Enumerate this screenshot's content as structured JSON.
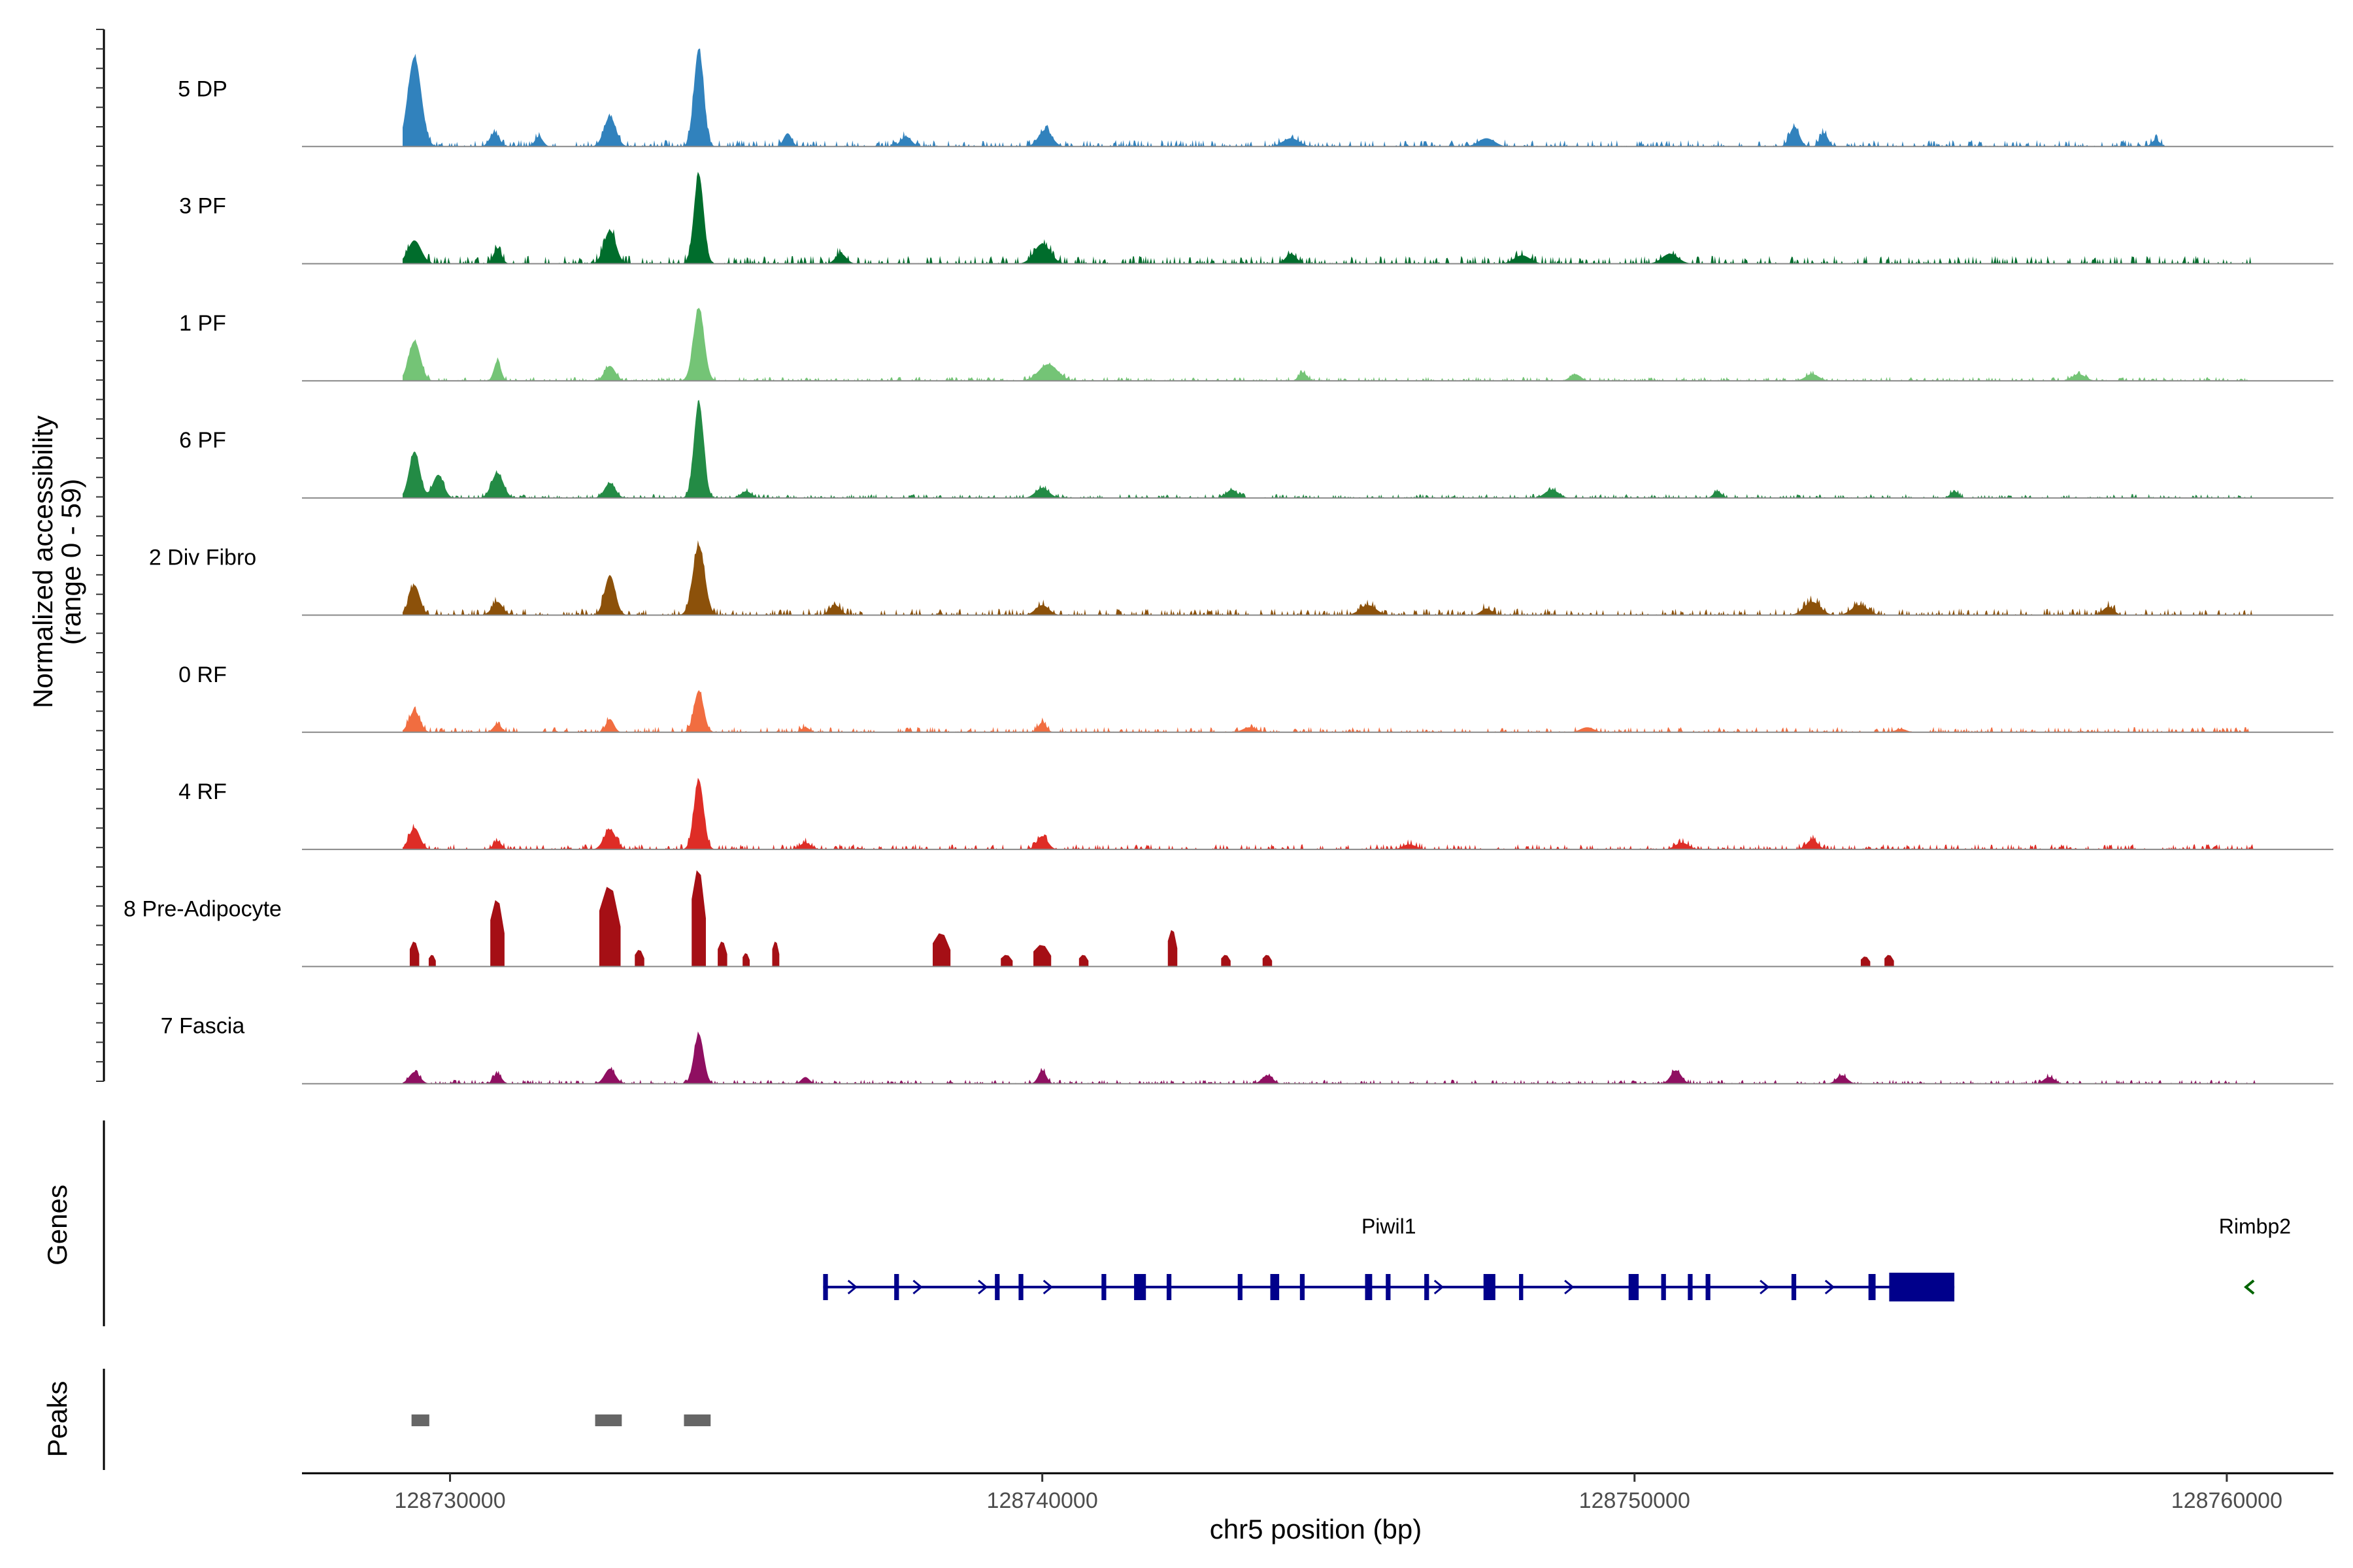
{
  "chart_data": {
    "type": "area",
    "region": "chr5:128727500-128761800",
    "accessibility_axis": {
      "title_line1": "Normalized accessibility",
      "title_line2": "(range 0 - 59)",
      "range": [
        0,
        59
      ]
    },
    "genes_label": "Genes",
    "peaks_label": "Peaks",
    "x_axis": {
      "title": "chr5 position (bp)",
      "range": [
        128727500,
        128761800
      ],
      "ticks": [
        128730000,
        128740000,
        128750000,
        128760000
      ],
      "tick_labels": [
        "128730000",
        "128740000",
        "128750000",
        "128760000"
      ]
    },
    "tracks": [
      {
        "name": "5 DP",
        "color": "#3182bd",
        "peaks": [
          [
            128729400,
            54,
            250
          ],
          [
            128730750,
            8,
            180
          ],
          [
            128731500,
            6,
            150
          ],
          [
            128732700,
            18,
            220
          ],
          [
            128734200,
            59,
            180
          ],
          [
            128735700,
            8,
            150
          ],
          [
            128737700,
            6,
            200
          ],
          [
            128740050,
            10,
            250
          ],
          [
            128744200,
            5,
            300
          ],
          [
            128747500,
            5,
            300
          ],
          [
            128752700,
            12,
            180
          ],
          [
            128753200,
            8,
            150
          ],
          [
            128758800,
            4,
            150
          ]
        ],
        "baseline": 2.5,
        "extent": [
          128729200,
          128759000
        ]
      },
      {
        "name": "3 PF",
        "color": "#006d2c",
        "peaks": [
          [
            128729400,
            14,
            250
          ],
          [
            128730800,
            9,
            150
          ],
          [
            128732700,
            20,
            220
          ],
          [
            128734200,
            54,
            180
          ],
          [
            128736600,
            6,
            200
          ],
          [
            128740000,
            12,
            300
          ],
          [
            128744200,
            6,
            200
          ],
          [
            128748100,
            5,
            300
          ],
          [
            128750600,
            6,
            300
          ]
        ],
        "baseline": 3,
        "extent": [
          128729200,
          128760500
        ]
      },
      {
        "name": "1 PF",
        "color": "#74c476",
        "peaks": [
          [
            128729400,
            24,
            220
          ],
          [
            128730800,
            12,
            130
          ],
          [
            128732700,
            9,
            200
          ],
          [
            128734200,
            44,
            200
          ],
          [
            128740100,
            10,
            350
          ],
          [
            128744400,
            5,
            150
          ],
          [
            128749000,
            4,
            200
          ],
          [
            128753000,
            4,
            250
          ],
          [
            128757500,
            4,
            250
          ]
        ],
        "baseline": 1.5,
        "extent": [
          128729200,
          128760500
        ]
      },
      {
        "name": "6 PF",
        "color": "#238b45",
        "peaks": [
          [
            128729400,
            28,
            200
          ],
          [
            128729800,
            14,
            200
          ],
          [
            128730800,
            15,
            220
          ],
          [
            128732700,
            9,
            200
          ],
          [
            128734200,
            58,
            180
          ],
          [
            128735000,
            4,
            200
          ],
          [
            128740000,
            6,
            250
          ],
          [
            128743200,
            5,
            200
          ],
          [
            128748600,
            5,
            250
          ],
          [
            128751400,
            4,
            150
          ],
          [
            128755400,
            4,
            150
          ]
        ],
        "baseline": 1.5,
        "extent": [
          128729200,
          128760500
        ]
      },
      {
        "name": "2 Div Fibro",
        "color": "#8c510a",
        "peaks": [
          [
            128729400,
            18,
            200
          ],
          [
            128730800,
            8,
            200
          ],
          [
            128732700,
            24,
            200
          ],
          [
            128734200,
            42,
            220
          ],
          [
            128736500,
            6,
            200
          ],
          [
            128740000,
            6,
            250
          ],
          [
            128745500,
            6,
            300
          ],
          [
            128747500,
            4,
            200
          ],
          [
            128753000,
            8,
            300
          ],
          [
            128753800,
            6,
            300
          ],
          [
            128758000,
            5,
            200
          ]
        ],
        "baseline": 2.5,
        "extent": [
          128729200,
          128760500
        ]
      },
      {
        "name": "0 RF",
        "color": "#f16d40",
        "peaks": [
          [
            128729400,
            13,
            200
          ],
          [
            128730800,
            5,
            150
          ],
          [
            128732700,
            8,
            150
          ],
          [
            128734200,
            25,
            180
          ],
          [
            128736000,
            3,
            150
          ],
          [
            128740000,
            6,
            150
          ],
          [
            128743500,
            3,
            250
          ],
          [
            128749200,
            3,
            250
          ],
          [
            128754500,
            2,
            200
          ]
        ],
        "baseline": 2,
        "extent": [
          128729200,
          128760500
        ]
      },
      {
        "name": "4 RF",
        "color": "#de2d26",
        "peaks": [
          [
            128729400,
            13,
            200
          ],
          [
            128730800,
            5,
            150
          ],
          [
            128732700,
            12,
            220
          ],
          [
            128734200,
            42,
            180
          ],
          [
            128736000,
            4,
            200
          ],
          [
            128740000,
            8,
            200
          ],
          [
            128746200,
            3,
            250
          ],
          [
            128750800,
            4,
            250
          ],
          [
            128753000,
            6,
            200
          ]
        ],
        "baseline": 2,
        "extent": [
          128729200,
          128760500
        ]
      },
      {
        "name": "8 Pre-Adipocyte",
        "color": "#a50f15",
        "peaks": [
          [
            128729400,
            15,
            80
          ],
          [
            128729700,
            7,
            60
          ],
          [
            128730800,
            40,
            120
          ],
          [
            128732700,
            48,
            180
          ],
          [
            128733200,
            10,
            80
          ],
          [
            128734200,
            58,
            120
          ],
          [
            128734600,
            15,
            80
          ],
          [
            128735000,
            8,
            60
          ],
          [
            128735500,
            15,
            60
          ],
          [
            128738300,
            20,
            150
          ],
          [
            128739400,
            7,
            100
          ],
          [
            128740000,
            13,
            150
          ],
          [
            128740700,
            7,
            80
          ],
          [
            128742200,
            22,
            80
          ],
          [
            128743100,
            7,
            80
          ],
          [
            128743800,
            7,
            80
          ],
          [
            128753900,
            6,
            80
          ],
          [
            128754300,
            7,
            80
          ]
        ],
        "baseline": 0,
        "extent": [
          128729200,
          128754500
        ]
      },
      {
        "name": "7 Fascia",
        "color": "#8f0f61",
        "peaks": [
          [
            128729400,
            7,
            200
          ],
          [
            128730800,
            6,
            150
          ],
          [
            128732700,
            9,
            200
          ],
          [
            128734200,
            30,
            180
          ],
          [
            128736000,
            4,
            150
          ],
          [
            128740000,
            8,
            150
          ],
          [
            128743800,
            5,
            200
          ],
          [
            128750700,
            8,
            200
          ],
          [
            128753500,
            5,
            200
          ],
          [
            128757000,
            4,
            200
          ]
        ],
        "baseline": 1.5,
        "extent": [
          128729200,
          128760500
        ]
      }
    ],
    "genes": [
      {
        "name": "Piwil1",
        "strand": "+",
        "color": "#00008b",
        "start": 128736300,
        "end": 128755400,
        "exons": [
          [
            128736300,
            128736380
          ],
          [
            128737500,
            128737580
          ],
          [
            128739200,
            128739280
          ],
          [
            128739600,
            128739680
          ],
          [
            128741000,
            128741080
          ],
          [
            128741550,
            128741750
          ],
          [
            128742100,
            128742180
          ],
          [
            128743300,
            128743380
          ],
          [
            128743850,
            128744000
          ],
          [
            128744350,
            128744430
          ],
          [
            128745450,
            128745570
          ],
          [
            128745800,
            128745880
          ],
          [
            128746450,
            128746530
          ],
          [
            128747450,
            128747650
          ],
          [
            128748050,
            128748120
          ],
          [
            128749900,
            128750070
          ],
          [
            128750450,
            128750530
          ],
          [
            128750900,
            128750980
          ],
          [
            128751200,
            128751280
          ],
          [
            128752650,
            128752730
          ],
          [
            128753950,
            128754070
          ],
          [
            128754300,
            128755400
          ]
        ]
      },
      {
        "name": "Rimbp2",
        "strand": "-",
        "color": "#006400",
        "start": 128760400,
        "end": 128760550,
        "exons": []
      }
    ],
    "peak_regions": [
      [
        128729350,
        128729650
      ],
      [
        128732450,
        128732900
      ],
      [
        128733950,
        128734400
      ]
    ],
    "peak_color": "#666666"
  }
}
